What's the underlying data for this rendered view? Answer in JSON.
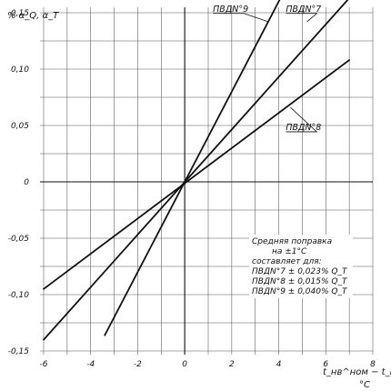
{
  "chart_data": {
    "type": "line",
    "ylabel": "%  α_Q, α_T",
    "xlabel": "t_нв^ном − t_нв",
    "xlabel_unit": "°C",
    "xlim": [
      -6,
      8
    ],
    "ylim": [
      -0.15,
      0.15
    ],
    "x_ticks": [
      -6,
      -4,
      -2,
      0,
      2,
      4,
      6,
      8
    ],
    "y_ticks": [
      0.15,
      0.1,
      0.05,
      0,
      -0.05,
      -0.1,
      -0.15
    ],
    "x_tick_labels": [
      "-6",
      "-4",
      "-2",
      "0",
      "2",
      "4",
      "6",
      "8"
    ],
    "y_tick_labels": [
      "0,15",
      "0,10",
      "0,05",
      "0",
      "-0,05",
      "-0,10",
      "-0,15"
    ],
    "grid": true,
    "series": [
      {
        "name": "ПВДN°9",
        "x": [
          -3.4,
          4.1
        ],
        "y": [
          -0.136,
          0.164
        ]
      },
      {
        "name": "ПВДN°7",
        "x": [
          -6.0,
          7.0
        ],
        "y": [
          -0.14,
          0.163
        ]
      },
      {
        "name": "ПВДN°8",
        "x": [
          -6.0,
          7.0
        ],
        "y": [
          -0.095,
          0.108
        ]
      }
    ],
    "annotation": {
      "lines": [
        "Средняя поправка",
        "на ±1°С",
        "составляет для:",
        "ПВДN°7   ± 0,023% Q_T",
        "ПВДN°8   ± 0,015% Q_T",
        "ПВДN°9 ± 0,040% Q_T"
      ]
    }
  }
}
